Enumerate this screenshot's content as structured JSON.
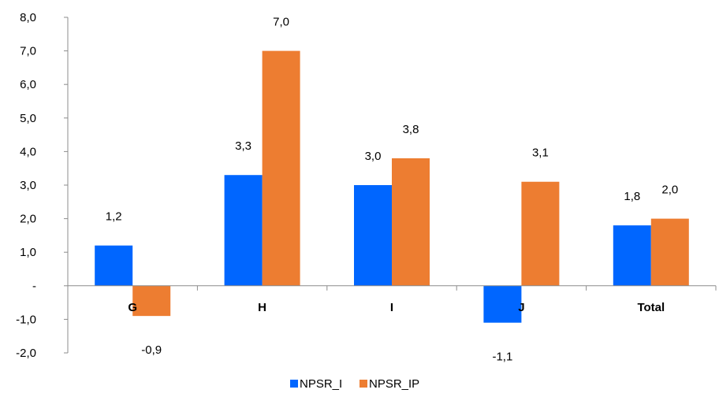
{
  "chart_data": {
    "type": "bar",
    "categories": [
      "G",
      "H",
      "I",
      "J",
      "Total"
    ],
    "series": [
      {
        "name": "NPSR_I",
        "color": "#0066FF",
        "values": [
          1.2,
          3.3,
          3.0,
          -1.1,
          1.8
        ],
        "labels": [
          "1,2",
          "3,3",
          "3,0",
          "-1,1",
          "1,8"
        ]
      },
      {
        "name": "NPSR_IP",
        "color": "#ED7D31",
        "values": [
          -0.9,
          7.0,
          3.8,
          3.1,
          2.0
        ],
        "labels": [
          "-0,9",
          "7,0",
          "3,8",
          "3,1",
          "2,0"
        ]
      }
    ],
    "ylim": [
      -2,
      8
    ],
    "yticks": [
      -2,
      -1,
      0,
      1,
      2,
      3,
      4,
      5,
      6,
      7,
      8
    ],
    "ytick_labels": [
      "-2,0",
      "-1,0",
      "-",
      "1,0",
      "2,0",
      "3,0",
      "4,0",
      "5,0",
      "6,0",
      "7,0",
      "8,0"
    ],
    "grid": false,
    "legend_position": "bottom-center"
  }
}
